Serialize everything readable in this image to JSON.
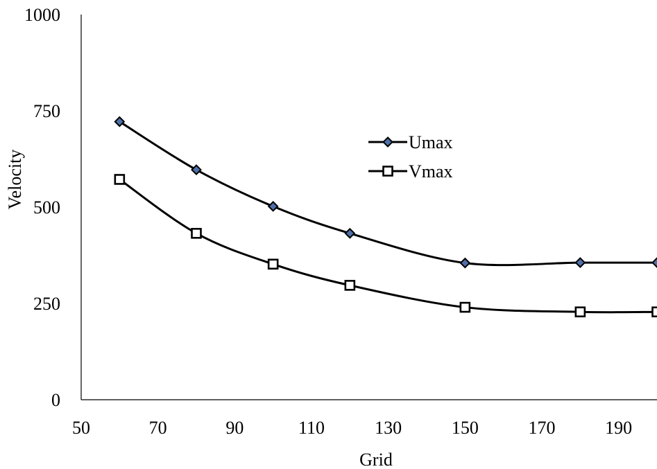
{
  "chart_data": {
    "type": "line",
    "title": "",
    "xlabel": "Grid",
    "ylabel": "Velocity",
    "xlim": [
      50,
      200
    ],
    "ylim": [
      0,
      1000
    ],
    "x_ticks": [
      "50",
      "70",
      "90",
      "110",
      "130",
      "150",
      "170",
      "190"
    ],
    "y_ticks": [
      "0",
      "250",
      "500",
      "750",
      "1000"
    ],
    "grid": false,
    "legend_position": "center-right",
    "x": [
      60,
      80,
      100,
      120,
      150,
      180,
      200
    ],
    "series": [
      {
        "name": "Umax",
        "marker": "diamond-filled",
        "marker_color": "#4F6FA8",
        "line_color": "#000000",
        "values": [
          722,
          597,
          502,
          432,
          355,
          356,
          356
        ]
      },
      {
        "name": "Vmax",
        "marker": "square-open",
        "marker_color": "#ffffff",
        "line_color": "#000000",
        "values": [
          572,
          432,
          352,
          297,
          240,
          228,
          228
        ]
      }
    ]
  }
}
